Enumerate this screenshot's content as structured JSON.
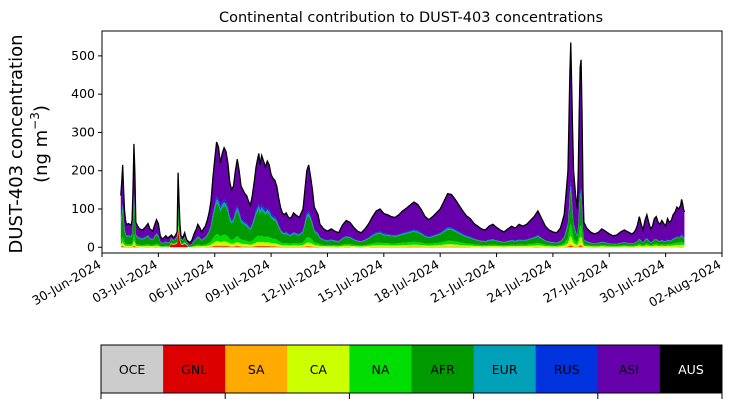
{
  "chart_data": {
    "type": "area",
    "stacked": true,
    "title": "Continental contribution to DUST-403 concentrations",
    "ylabel_line1": "DUST-403 concentration",
    "ylabel_line2": "(ng m",
    "ylabel_sup": "−3",
    "ylabel_close": ")",
    "xlim": [
      "2024-06-30",
      "2024-08-02"
    ],
    "ylim": [
      -15,
      565
    ],
    "x_start": "2024-07-01",
    "x_end": "2024-07-31",
    "x_ticks": [
      "2024-06-30",
      "2024-07-03",
      "2024-07-06",
      "2024-07-09",
      "2024-07-12",
      "2024-07-15",
      "2024-07-18",
      "2024-07-21",
      "2024-07-24",
      "2024-07-27",
      "2024-07-30",
      "2024-08-02"
    ],
    "x_tick_labels": [
      "30-Jun-2024",
      "03-Jul-2024",
      "06-Jul-2024",
      "09-Jul-2024",
      "12-Jul-2024",
      "15-Jul-2024",
      "18-Jul-2024",
      "21-Jul-2024",
      "24-Jul-2024",
      "27-Jul-2024",
      "30-Jul-2024",
      "02-Aug-2024"
    ],
    "y_ticks": [
      0,
      100,
      200,
      300,
      400,
      500
    ],
    "y_tick_labels": [
      "0",
      "100",
      "200",
      "300",
      "400",
      "500"
    ],
    "grid": false,
    "total_line_color": "#000000",
    "total_anchors": [
      [
        0.0,
        135
      ],
      [
        0.05,
        170
      ],
      [
        0.1,
        215
      ],
      [
        0.15,
        150
      ],
      [
        0.2,
        95
      ],
      [
        0.28,
        58
      ],
      [
        0.4,
        62
      ],
      [
        0.55,
        58
      ],
      [
        0.62,
        75
      ],
      [
        0.66,
        175
      ],
      [
        0.7,
        270
      ],
      [
        0.73,
        305
      ],
      [
        0.76,
        140
      ],
      [
        0.8,
        65
      ],
      [
        0.9,
        55
      ],
      [
        1.0,
        48
      ],
      [
        1.15,
        45
      ],
      [
        1.3,
        52
      ],
      [
        1.45,
        62
      ],
      [
        1.55,
        48
      ],
      [
        1.7,
        42
      ],
      [
        1.8,
        58
      ],
      [
        1.9,
        72
      ],
      [
        2.0,
        62
      ],
      [
        2.1,
        30
      ],
      [
        2.2,
        22
      ],
      [
        2.3,
        25
      ],
      [
        2.4,
        30
      ],
      [
        2.5,
        24
      ],
      [
        2.6,
        28
      ],
      [
        2.7,
        32
      ],
      [
        2.8,
        25
      ],
      [
        2.9,
        30
      ],
      [
        3.0,
        40
      ],
      [
        3.05,
        195
      ],
      [
        3.1,
        120
      ],
      [
        3.15,
        60
      ],
      [
        3.2,
        30
      ],
      [
        3.3,
        25
      ],
      [
        3.4,
        38
      ],
      [
        3.5,
        20
      ],
      [
        3.6,
        15
      ],
      [
        3.7,
        12
      ],
      [
        3.8,
        20
      ],
      [
        3.9,
        35
      ],
      [
        4.0,
        45
      ],
      [
        4.1,
        60
      ],
      [
        4.2,
        52
      ],
      [
        4.3,
        40
      ],
      [
        4.4,
        48
      ],
      [
        4.5,
        55
      ],
      [
        4.6,
        70
      ],
      [
        4.7,
        90
      ],
      [
        4.8,
        120
      ],
      [
        4.9,
        180
      ],
      [
        5.0,
        230
      ],
      [
        5.1,
        275
      ],
      [
        5.2,
        262
      ],
      [
        5.3,
        220
      ],
      [
        5.4,
        245
      ],
      [
        5.5,
        260
      ],
      [
        5.6,
        250
      ],
      [
        5.7,
        220
      ],
      [
        5.8,
        170
      ],
      [
        5.9,
        150
      ],
      [
        6.0,
        160
      ],
      [
        6.1,
        200
      ],
      [
        6.2,
        230
      ],
      [
        6.3,
        200
      ],
      [
        6.4,
        160
      ],
      [
        6.5,
        150
      ],
      [
        6.6,
        140
      ],
      [
        6.7,
        135
      ],
      [
        6.8,
        120
      ],
      [
        6.9,
        110
      ],
      [
        7.0,
        135
      ],
      [
        7.1,
        170
      ],
      [
        7.2,
        210
      ],
      [
        7.3,
        235
      ],
      [
        7.35,
        245
      ],
      [
        7.4,
        215
      ],
      [
        7.5,
        240
      ],
      [
        7.6,
        225
      ],
      [
        7.7,
        210
      ],
      [
        7.8,
        225
      ],
      [
        7.9,
        215
      ],
      [
        8.0,
        190
      ],
      [
        8.1,
        180
      ],
      [
        8.2,
        175
      ],
      [
        8.3,
        160
      ],
      [
        8.4,
        130
      ],
      [
        8.5,
        105
      ],
      [
        8.6,
        90
      ],
      [
        8.7,
        85
      ],
      [
        8.8,
        90
      ],
      [
        8.9,
        80
      ],
      [
        9.0,
        75
      ],
      [
        9.1,
        80
      ],
      [
        9.2,
        90
      ],
      [
        9.3,
        85
      ],
      [
        9.5,
        78
      ],
      [
        9.7,
        100
      ],
      [
        9.8,
        150
      ],
      [
        9.9,
        200
      ],
      [
        10.0,
        215
      ],
      [
        10.1,
        185
      ],
      [
        10.2,
        150
      ],
      [
        10.3,
        105
      ],
      [
        10.4,
        95
      ],
      [
        10.5,
        85
      ],
      [
        10.6,
        60
      ],
      [
        10.8,
        48
      ],
      [
        11.0,
        42
      ],
      [
        11.2,
        48
      ],
      [
        11.4,
        42
      ],
      [
        11.6,
        38
      ],
      [
        11.8,
        58
      ],
      [
        12.0,
        70
      ],
      [
        12.2,
        65
      ],
      [
        12.4,
        52
      ],
      [
        12.6,
        42
      ],
      [
        12.8,
        38
      ],
      [
        13.0,
        48
      ],
      [
        13.2,
        62
      ],
      [
        13.4,
        80
      ],
      [
        13.6,
        95
      ],
      [
        13.8,
        100
      ],
      [
        14.0,
        88
      ],
      [
        14.2,
        85
      ],
      [
        14.4,
        80
      ],
      [
        14.6,
        78
      ],
      [
        14.8,
        85
      ],
      [
        15.0,
        95
      ],
      [
        15.2,
        102
      ],
      [
        15.4,
        110
      ],
      [
        15.6,
        118
      ],
      [
        15.8,
        112
      ],
      [
        16.0,
        98
      ],
      [
        16.2,
        80
      ],
      [
        16.4,
        72
      ],
      [
        16.6,
        80
      ],
      [
        16.8,
        90
      ],
      [
        17.0,
        100
      ],
      [
        17.2,
        120
      ],
      [
        17.4,
        140
      ],
      [
        17.6,
        138
      ],
      [
        17.8,
        125
      ],
      [
        18.0,
        110
      ],
      [
        18.2,
        95
      ],
      [
        18.4,
        82
      ],
      [
        18.6,
        75
      ],
      [
        18.8,
        62
      ],
      [
        19.0,
        55
      ],
      [
        19.2,
        48
      ],
      [
        19.4,
        45
      ],
      [
        19.6,
        55
      ],
      [
        19.8,
        60
      ],
      [
        20.0,
        52
      ],
      [
        20.2,
        45
      ],
      [
        20.4,
        40
      ],
      [
        20.6,
        48
      ],
      [
        20.8,
        55
      ],
      [
        21.0,
        50
      ],
      [
        21.2,
        60
      ],
      [
        21.4,
        55
      ],
      [
        21.6,
        60
      ],
      [
        21.8,
        70
      ],
      [
        22.0,
        80
      ],
      [
        22.2,
        95
      ],
      [
        22.4,
        75
      ],
      [
        22.6,
        55
      ],
      [
        22.8,
        45
      ],
      [
        23.0,
        40
      ],
      [
        23.2,
        38
      ],
      [
        23.4,
        50
      ],
      [
        23.6,
        85
      ],
      [
        23.7,
        140
      ],
      [
        23.8,
        200
      ],
      [
        23.85,
        320
      ],
      [
        23.9,
        450
      ],
      [
        23.95,
        535
      ],
      [
        24.0,
        420
      ],
      [
        24.05,
        300
      ],
      [
        24.1,
        200
      ],
      [
        24.2,
        140
      ],
      [
        24.3,
        100
      ],
      [
        24.35,
        200
      ],
      [
        24.4,
        350
      ],
      [
        24.45,
        470
      ],
      [
        24.5,
        490
      ],
      [
        24.55,
        350
      ],
      [
        24.6,
        150
      ],
      [
        24.65,
        65
      ],
      [
        24.8,
        50
      ],
      [
        25.0,
        40
      ],
      [
        25.2,
        35
      ],
      [
        25.4,
        38
      ],
      [
        25.6,
        48
      ],
      [
        25.8,
        42
      ],
      [
        26.0,
        35
      ],
      [
        26.2,
        30
      ],
      [
        26.4,
        32
      ],
      [
        26.6,
        40
      ],
      [
        26.8,
        45
      ],
      [
        27.0,
        40
      ],
      [
        27.2,
        35
      ],
      [
        27.3,
        38
      ],
      [
        27.4,
        45
      ],
      [
        27.5,
        58
      ],
      [
        27.6,
        80
      ],
      [
        27.7,
        60
      ],
      [
        27.8,
        45
      ],
      [
        27.9,
        70
      ],
      [
        28.0,
        85
      ],
      [
        28.1,
        65
      ],
      [
        28.2,
        48
      ],
      [
        28.3,
        55
      ],
      [
        28.4,
        75
      ],
      [
        28.5,
        80
      ],
      [
        28.6,
        65
      ],
      [
        28.7,
        60
      ],
      [
        28.8,
        70
      ],
      [
        28.9,
        62
      ],
      [
        29.0,
        55
      ],
      [
        29.1,
        75
      ],
      [
        29.2,
        65
      ],
      [
        29.3,
        70
      ],
      [
        29.4,
        85
      ],
      [
        29.5,
        92
      ],
      [
        29.6,
        105
      ],
      [
        29.7,
        100
      ],
      [
        29.8,
        110
      ],
      [
        29.85,
        125
      ],
      [
        29.9,
        115
      ],
      [
        29.95,
        100
      ],
      [
        30.0,
        92
      ]
    ],
    "series": [
      {
        "name": "OCE",
        "color": "#cccccc",
        "share_early": 0.0,
        "share_late": 0.0
      },
      {
        "name": "GNL",
        "color": "#dd0000",
        "share_early": 0.01,
        "share_late": 0.005
      },
      {
        "name": "SA",
        "color": "#ffaa00",
        "share_early": 0.01,
        "share_late": 0.01
      },
      {
        "name": "CA",
        "color": "#ccff00",
        "share_early": 0.04,
        "share_late": 0.04
      },
      {
        "name": "NA",
        "color": "#00dd00",
        "share_early": 0.07,
        "share_late": 0.06
      },
      {
        "name": "AFR",
        "color": "#009900",
        "share_early": 0.33,
        "share_late": 0.12
      },
      {
        "name": "EUR",
        "color": "#00a0b8",
        "share_early": 0.04,
        "share_late": 0.015
      },
      {
        "name": "RUS",
        "color": "#0033dd",
        "share_early": 0.03,
        "share_late": 0.015
      },
      {
        "name": "ASI",
        "color": "#6600aa",
        "share_early": 0.47,
        "share_late": 0.735
      },
      {
        "name": "AUS",
        "color": "#000000",
        "share_early": 0.0,
        "share_late": 0.0
      }
    ]
  },
  "legend": {
    "items": [
      {
        "label": "OCE",
        "color": "#cccccc",
        "text_color": "#000000"
      },
      {
        "label": "GNL",
        "color": "#dd0000",
        "text_color": "#000000"
      },
      {
        "label": "SA",
        "color": "#ffaa00",
        "text_color": "#000000"
      },
      {
        "label": "CA",
        "color": "#ccff00",
        "text_color": "#000000"
      },
      {
        "label": "NA",
        "color": "#00dd00",
        "text_color": "#000000"
      },
      {
        "label": "AFR",
        "color": "#009900",
        "text_color": "#000000"
      },
      {
        "label": "EUR",
        "color": "#00a0b8",
        "text_color": "#000000"
      },
      {
        "label": "RUS",
        "color": "#0033dd",
        "text_color": "#000000"
      },
      {
        "label": "ASI",
        "color": "#6600aa",
        "text_color": "#000000"
      },
      {
        "label": "AUS",
        "color": "#000000",
        "text_color": "#ffffff"
      }
    ]
  }
}
